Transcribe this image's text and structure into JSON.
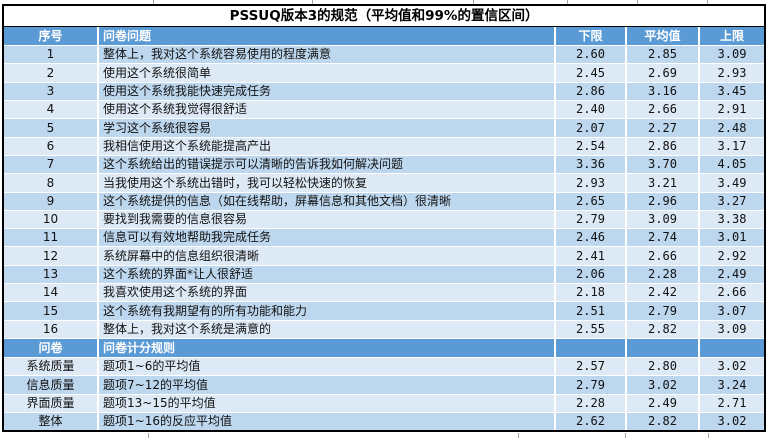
{
  "title": "PSSUQ版本3的规范（平均值和99%的置信区间）",
  "colors": {
    "header_bg": "#5b9bd5",
    "band_dark": "#bdd7ee",
    "band_light": "#dde9f5",
    "outer_border": "#000000",
    "header_text": "#ffffff",
    "body_text": "#111111"
  },
  "table": {
    "headers": {
      "num": "序号",
      "question": "问卷问题",
      "lower": "下限",
      "mean": "平均值",
      "upper": "上限"
    },
    "question_rows": [
      {
        "num": "1",
        "question": "整体上，我对这个系统容易使用的程度满意",
        "lower": "2.60",
        "mean": "2.85",
        "upper": "3.09"
      },
      {
        "num": "2",
        "question": "使用这个系统很简单",
        "lower": "2.45",
        "mean": "2.69",
        "upper": "2.93"
      },
      {
        "num": "3",
        "question": "使用这个系统我能快速完成任务",
        "lower": "2.86",
        "mean": "3.16",
        "upper": "3.45"
      },
      {
        "num": "4",
        "question": "使用这个系统我觉得很舒适",
        "lower": "2.40",
        "mean": "2.66",
        "upper": "2.91"
      },
      {
        "num": "5",
        "question": "学习这个系统很容易",
        "lower": "2.07",
        "mean": "2.27",
        "upper": "2.48"
      },
      {
        "num": "6",
        "question": "我相信使用这个系统能提高产出",
        "lower": "2.54",
        "mean": "2.86",
        "upper": "3.17"
      },
      {
        "num": "7",
        "question": "这个系统给出的错误提示可以清晰的告诉我如何解决问题",
        "lower": "3.36",
        "mean": "3.70",
        "upper": "4.05"
      },
      {
        "num": "8",
        "question": "当我使用这个系统出错时，我可以轻松快速的恢复",
        "lower": "2.93",
        "mean": "3.21",
        "upper": "3.49"
      },
      {
        "num": "9",
        "question": "这个系统提供的信息（如在线帮助，屏幕信息和其他文档）很清晰",
        "lower": "2.65",
        "mean": "2.96",
        "upper": "3.27"
      },
      {
        "num": "10",
        "question": "要找到我需要的信息很容易",
        "lower": "2.79",
        "mean": "3.09",
        "upper": "3.38"
      },
      {
        "num": "11",
        "question": "信息可以有效地帮助我完成任务",
        "lower": "2.46",
        "mean": "2.74",
        "upper": "3.01"
      },
      {
        "num": "12",
        "question": "系统屏幕中的信息组织很清晰",
        "lower": "2.41",
        "mean": "2.66",
        "upper": "2.92"
      },
      {
        "num": "13",
        "question": "这个系统的界面*让人很舒适",
        "lower": "2.06",
        "mean": "2.28",
        "upper": "2.49"
      },
      {
        "num": "14",
        "question": "我喜欢使用这个系统的界面",
        "lower": "2.18",
        "mean": "2.42",
        "upper": "2.66"
      },
      {
        "num": "15",
        "question": "这个系统有我期望有的所有功能和能力",
        "lower": "2.51",
        "mean": "2.79",
        "upper": "3.07"
      },
      {
        "num": "16",
        "question": "整体上，我对这个系统是满意的",
        "lower": "2.55",
        "mean": "2.82",
        "upper": "3.09"
      }
    ],
    "scoring_header": {
      "num": "问卷",
      "question": "问卷计分规则",
      "lower": "",
      "mean": "",
      "upper": ""
    },
    "scoring_rows": [
      {
        "num": "系统质量",
        "question": "题项1~6的平均值",
        "lower": "2.57",
        "mean": "2.80",
        "upper": "3.02"
      },
      {
        "num": "信息质量",
        "question": "题项7~12的平均值",
        "lower": "2.79",
        "mean": "3.02",
        "upper": "3.24"
      },
      {
        "num": "界面质量",
        "question": "题项13~15的平均值",
        "lower": "2.28",
        "mean": "2.49",
        "upper": "2.71"
      },
      {
        "num": "整体",
        "question": "题项1~16的反应平均值",
        "lower": "2.62",
        "mean": "2.82",
        "upper": "3.02"
      }
    ]
  }
}
